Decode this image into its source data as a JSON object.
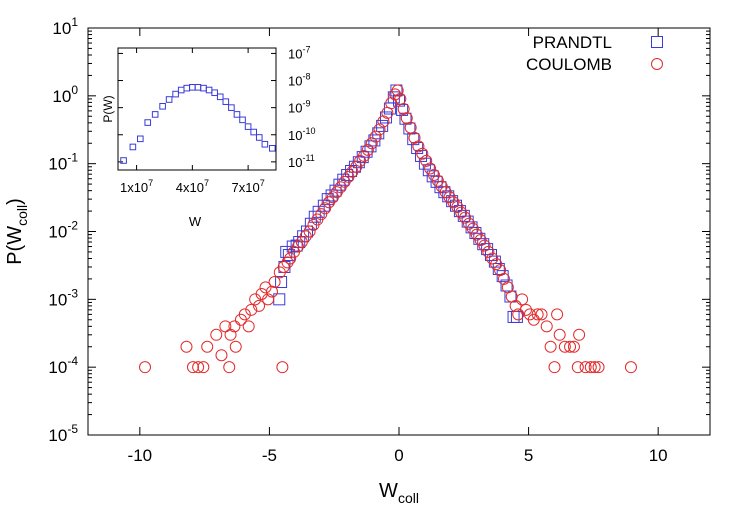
{
  "chart_data": [
    {
      "type": "scatter",
      "xlabel": "W",
      "xlabel_sub": "coll",
      "ylabel": "P(W",
      "ylabel_sub": "coll",
      "ylabel_close": ")",
      "xlim": [
        -12,
        12
      ],
      "ylim_log10": [
        -5,
        1
      ],
      "yscale": "log",
      "xticks": [
        {
          "value": -10,
          "label": "-10"
        },
        {
          "value": -5,
          "label": "-5"
        },
        {
          "value": 0,
          "label": "0"
        },
        {
          "value": 5,
          "label": "5"
        },
        {
          "value": 10,
          "label": "10"
        }
      ],
      "yticks": [
        {
          "exp": 1,
          "base": "10",
          "sup": "1"
        },
        {
          "exp": 0,
          "base": "10",
          "sup": "0"
        },
        {
          "exp": -1,
          "base": "10",
          "sup": "-1"
        },
        {
          "exp": -2,
          "base": "10",
          "sup": "-2"
        },
        {
          "exp": -3,
          "base": "10",
          "sup": "-3"
        },
        {
          "exp": -4,
          "base": "10",
          "sup": "-4"
        },
        {
          "exp": -5,
          "base": "10",
          "sup": "-5"
        }
      ],
      "legend_position": "top-right",
      "series": [
        {
          "name": "PRANDTL",
          "marker": "square",
          "color": "#3b3bd9",
          "points": [
            [
              -4.62,
              0.001
            ],
            [
              -4.55,
              0.0018
            ],
            [
              -4.42,
              0.003
            ],
            [
              -4.35,
              0.005
            ],
            [
              -4.25,
              0.0045
            ],
            [
              -4.1,
              0.006
            ],
            [
              -3.95,
              0.0062
            ],
            [
              -3.85,
              0.007
            ],
            [
              -3.7,
              0.0085
            ],
            [
              -3.55,
              0.01
            ],
            [
              -3.4,
              0.013
            ],
            [
              -3.25,
              0.0165
            ],
            [
              -3.1,
              0.0195
            ],
            [
              -2.9,
              0.024
            ],
            [
              -2.75,
              0.03
            ],
            [
              -2.6,
              0.034
            ],
            [
              -2.45,
              0.04
            ],
            [
              -2.3,
              0.049
            ],
            [
              -2.15,
              0.058
            ],
            [
              -2.0,
              0.068
            ],
            [
              -1.85,
              0.078
            ],
            [
              -1.7,
              0.09
            ],
            [
              -1.55,
              0.105
            ],
            [
              -1.4,
              0.125
            ],
            [
              -1.25,
              0.15
            ],
            [
              -1.1,
              0.18
            ],
            [
              -0.95,
              0.22
            ],
            [
              -0.8,
              0.28
            ],
            [
              -0.65,
              0.36
            ],
            [
              -0.5,
              0.48
            ],
            [
              -0.35,
              0.65
            ],
            [
              -0.2,
              0.95
            ],
            [
              -0.1,
              1.2
            ],
            [
              0.0,
              0.85
            ],
            [
              0.12,
              0.62
            ],
            [
              0.25,
              0.46
            ],
            [
              0.4,
              0.33
            ],
            [
              0.55,
              0.23
            ],
            [
              0.7,
              0.17
            ],
            [
              0.85,
              0.13
            ],
            [
              1.0,
              0.1
            ],
            [
              1.15,
              0.08
            ],
            [
              1.3,
              0.065
            ],
            [
              1.45,
              0.054
            ],
            [
              1.6,
              0.045
            ],
            [
              1.75,
              0.038
            ],
            [
              1.9,
              0.033
            ],
            [
              2.05,
              0.028
            ],
            [
              2.2,
              0.024
            ],
            [
              2.35,
              0.02
            ],
            [
              2.5,
              0.017
            ],
            [
              2.65,
              0.014
            ],
            [
              2.8,
              0.0115
            ],
            [
              2.95,
              0.0095
            ],
            [
              3.1,
              0.0078
            ],
            [
              3.25,
              0.0065
            ],
            [
              3.4,
              0.0055
            ],
            [
              3.55,
              0.0045
            ],
            [
              3.7,
              0.0036
            ],
            [
              3.85,
              0.0028
            ],
            [
              4.0,
              0.0022
            ],
            [
              4.15,
              0.0016
            ],
            [
              4.3,
              0.0011
            ],
            [
              4.42,
              0.00055
            ],
            [
              4.55,
              0.00055
            ]
          ]
        },
        {
          "name": "COULOMB",
          "marker": "circle",
          "color": "#e32b2b",
          "points": [
            [
              -9.8,
              0.0001
            ],
            [
              -8.2,
              0.0002
            ],
            [
              -7.95,
              0.0001
            ],
            [
              -7.75,
              0.0001
            ],
            [
              -7.55,
              0.0001
            ],
            [
              -7.4,
              0.0002
            ],
            [
              -7.05,
              0.0003
            ],
            [
              -6.85,
              0.00015
            ],
            [
              -6.7,
              0.0004
            ],
            [
              -6.55,
              0.0001
            ],
            [
              -6.5,
              0.0003
            ],
            [
              -6.35,
              0.0004
            ],
            [
              -6.3,
              0.0002
            ],
            [
              -6.1,
              0.0005
            ],
            [
              -5.95,
              0.0006
            ],
            [
              -5.8,
              0.0004
            ],
            [
              -5.7,
              0.0007
            ],
            [
              -5.55,
              0.001
            ],
            [
              -5.4,
              0.0008
            ],
            [
              -5.3,
              0.0012
            ],
            [
              -5.15,
              0.0015
            ],
            [
              -5.05,
              0.001
            ],
            [
              -4.9,
              0.0013
            ],
            [
              -4.8,
              0.0018
            ],
            [
              -4.5,
              0.0001
            ],
            [
              -4.6,
              0.0025
            ],
            [
              -4.45,
              0.003
            ],
            [
              -4.3,
              0.0035
            ],
            [
              -4.2,
              0.004
            ],
            [
              -4.05,
              0.005
            ],
            [
              -3.9,
              0.006
            ],
            [
              -3.75,
              0.007
            ],
            [
              -3.6,
              0.0085
            ],
            [
              -3.45,
              0.01
            ],
            [
              -3.3,
              0.0125
            ],
            [
              -3.15,
              0.015
            ],
            [
              -3.0,
              0.018
            ],
            [
              -2.85,
              0.022
            ],
            [
              -2.7,
              0.027
            ],
            [
              -2.55,
              0.032
            ],
            [
              -2.4,
              0.038
            ],
            [
              -2.25,
              0.045
            ],
            [
              -2.1,
              0.054
            ],
            [
              -1.95,
              0.064
            ],
            [
              -1.8,
              0.076
            ],
            [
              -1.65,
              0.09
            ],
            [
              -1.5,
              0.11
            ],
            [
              -1.35,
              0.13
            ],
            [
              -1.2,
              0.16
            ],
            [
              -1.05,
              0.2
            ],
            [
              -0.9,
              0.25
            ],
            [
              -0.75,
              0.32
            ],
            [
              -0.6,
              0.42
            ],
            [
              -0.45,
              0.56
            ],
            [
              -0.3,
              0.78
            ],
            [
              -0.15,
              1.05
            ],
            [
              -0.05,
              1.2
            ],
            [
              0.05,
              0.9
            ],
            [
              0.18,
              0.64
            ],
            [
              0.3,
              0.47
            ],
            [
              0.45,
              0.34
            ],
            [
              0.6,
              0.24
            ],
            [
              0.75,
              0.18
            ],
            [
              0.9,
              0.14
            ],
            [
              1.05,
              0.11
            ],
            [
              1.2,
              0.085
            ],
            [
              1.35,
              0.068
            ],
            [
              1.5,
              0.056
            ],
            [
              1.65,
              0.046
            ],
            [
              1.8,
              0.038
            ],
            [
              1.95,
              0.032
            ],
            [
              2.1,
              0.027
            ],
            [
              2.25,
              0.023
            ],
            [
              2.4,
              0.019
            ],
            [
              2.55,
              0.016
            ],
            [
              2.7,
              0.013
            ],
            [
              2.85,
              0.011
            ],
            [
              3.0,
              0.009
            ],
            [
              3.15,
              0.0075
            ],
            [
              3.3,
              0.0062
            ],
            [
              3.45,
              0.005
            ],
            [
              3.6,
              0.004
            ],
            [
              3.75,
              0.0033
            ],
            [
              3.9,
              0.0027
            ],
            [
              4.05,
              0.002
            ],
            [
              4.2,
              0.0015
            ],
            [
              4.35,
              0.0011
            ],
            [
              4.5,
              0.0008
            ],
            [
              4.6,
              0.0006
            ],
            [
              4.75,
              0.001
            ],
            [
              4.9,
              0.0007
            ],
            [
              5.05,
              0.0006
            ],
            [
              5.2,
              0.0005
            ],
            [
              5.35,
              0.0006
            ],
            [
              5.5,
              0.0006
            ],
            [
              5.7,
              0.0004
            ],
            [
              5.85,
              0.0002
            ],
            [
              6.0,
              0.0001
            ],
            [
              6.1,
              0.0006
            ],
            [
              6.2,
              0.0003
            ],
            [
              6.4,
              0.0002
            ],
            [
              6.6,
              0.0002
            ],
            [
              6.75,
              0.0002
            ],
            [
              6.95,
              0.0003
            ],
            [
              6.9,
              0.0001
            ],
            [
              7.2,
              0.0001
            ],
            [
              7.4,
              0.0001
            ],
            [
              7.55,
              0.0001
            ],
            [
              7.7,
              0.0001
            ],
            [
              8.95,
              0.0001
            ]
          ]
        }
      ]
    },
    {
      "type": "scatter",
      "inset": true,
      "xlabel": "W",
      "ylabel": "P(W)",
      "yscale": "log",
      "xlim": [
        0,
        85000000.0
      ],
      "ylim_log10": [
        -11.3,
        -6.8
      ],
      "xticks": [
        {
          "value": 10000000.0,
          "base": "1x10",
          "sup": "7"
        },
        {
          "value": 40000000.0,
          "base": "4x10",
          "sup": "7"
        },
        {
          "value": 70000000.0,
          "base": "7x10",
          "sup": "7"
        }
      ],
      "yticks": [
        {
          "exp": -7,
          "base": "10",
          "sup": "-7"
        },
        {
          "exp": -8,
          "base": "10",
          "sup": "-8"
        },
        {
          "exp": -9,
          "base": "10",
          "sup": "-9"
        },
        {
          "exp": -10,
          "base": "10",
          "sup": "-10"
        },
        {
          "exp": -11,
          "base": "10",
          "sup": "-11"
        }
      ],
      "series": [
        {
          "marker": "square",
          "color": "#3b3bd9",
          "points": [
            [
              3000000.0,
              -10.95
            ],
            [
              8000000.0,
              -10.45
            ],
            [
              12000000.0,
              -10.15
            ],
            [
              16000000.0,
              -9.55
            ],
            [
              20000000.0,
              -9.25
            ],
            [
              24000000.0,
              -8.95
            ],
            [
              27500000.0,
              -8.7
            ],
            [
              31000000.0,
              -8.5
            ],
            [
              34000000.0,
              -8.35
            ],
            [
              37000000.0,
              -8.28
            ],
            [
              40000000.0,
              -8.25
            ],
            [
              43000000.0,
              -8.25
            ],
            [
              46000000.0,
              -8.28
            ],
            [
              49000000.0,
              -8.35
            ],
            [
              52000000.0,
              -8.45
            ],
            [
              55000000.0,
              -8.6
            ],
            [
              58000000.0,
              -8.78
            ],
            [
              61000000.0,
              -9.0
            ],
            [
              64000000.0,
              -9.25
            ],
            [
              67000000.0,
              -9.45
            ],
            [
              70000000.0,
              -9.7
            ],
            [
              73000000.0,
              -9.9
            ],
            [
              76000000.0,
              -10.1
            ],
            [
              79000000.0,
              -10.35
            ],
            [
              83000000.0,
              -10.5
            ]
          ]
        }
      ]
    }
  ]
}
